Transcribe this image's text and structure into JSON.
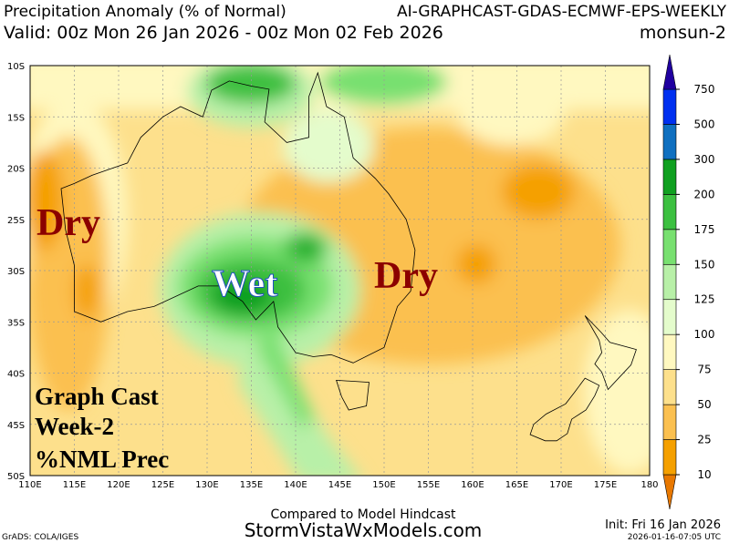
{
  "header": {
    "title_left": "Precipitation Anomaly (% of Normal)",
    "title_right": "AI-GRAPHCAST-GDAS-ECMWF-EPS-WEEKLY",
    "valid": "Valid: 00z Mon 26 Jan 2026 - 00z Mon 02 Feb 2026",
    "region": "monsun-2"
  },
  "map": {
    "lat_ticks": [
      {
        "value": 10,
        "label": "10S"
      },
      {
        "value": 15,
        "label": "15S"
      },
      {
        "value": 20,
        "label": "20S"
      },
      {
        "value": 25,
        "label": "25S"
      },
      {
        "value": 30,
        "label": "30S"
      },
      {
        "value": 35,
        "label": "35S"
      },
      {
        "value": 40,
        "label": "40S"
      },
      {
        "value": 45,
        "label": "45S"
      },
      {
        "value": 50,
        "label": "50S"
      }
    ],
    "lon_ticks": [
      {
        "value": 110,
        "label": "110E"
      },
      {
        "value": 115,
        "label": "115E"
      },
      {
        "value": 120,
        "label": "120E"
      },
      {
        "value": 125,
        "label": "125E"
      },
      {
        "value": 130,
        "label": "130E"
      },
      {
        "value": 135,
        "label": "135E"
      },
      {
        "value": 140,
        "label": "140E"
      },
      {
        "value": 145,
        "label": "145E"
      },
      {
        "value": 150,
        "label": "150E"
      },
      {
        "value": 155,
        "label": "155E"
      },
      {
        "value": 160,
        "label": "160E"
      },
      {
        "value": 165,
        "label": "165E"
      },
      {
        "value": 170,
        "label": "170E"
      },
      {
        "value": 175,
        "label": "175E"
      },
      {
        "value": 180,
        "label": "180"
      }
    ],
    "annotations": [
      "Dry",
      "Wet",
      "Dry"
    ],
    "note_lines": [
      "Graph Cast",
      "Week-2",
      "%NML Prec"
    ]
  },
  "colorbar": {
    "ticks": [
      10,
      25,
      50,
      75,
      100,
      125,
      150,
      175,
      200,
      300,
      500,
      750
    ],
    "colors": [
      "#e87800",
      "#f5a000",
      "#fbc050",
      "#fde08c",
      "#fff8c0",
      "#e4fccc",
      "#b8f0a8",
      "#78e070",
      "#3cc040",
      "#10a020",
      "#1070c0",
      "#0030f0",
      "#2000a0"
    ]
  },
  "footer": {
    "compared": "Compared to Model Hindcast",
    "site": "StormVistaWxModels.com",
    "grads": "GrADS: COLA/IGES",
    "init": "Init: Fri 16 Jan 2026",
    "stamp": "2026-01-16-07:05 UTC"
  }
}
